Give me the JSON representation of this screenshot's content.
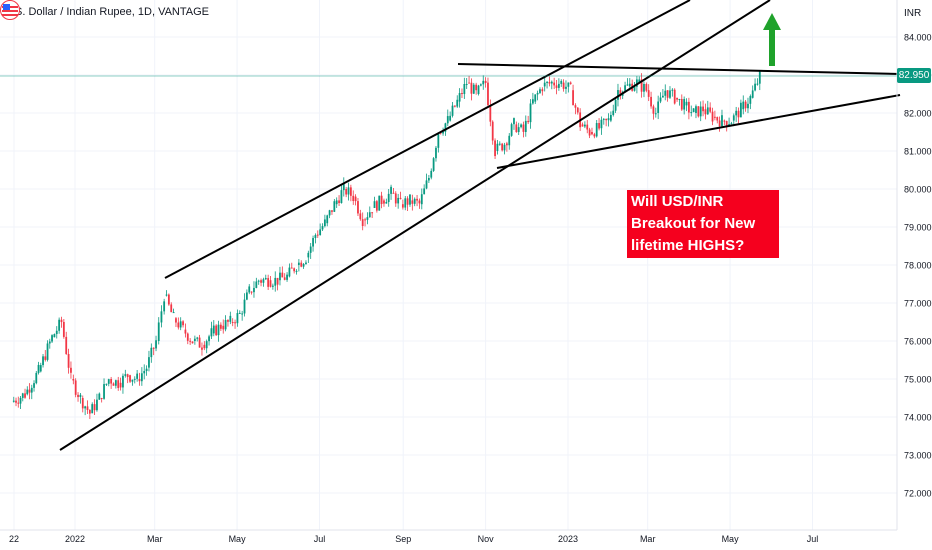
{
  "header": {
    "symbol_title": "U.S. Dollar / Indian Rupee, 1D, VANTAGE",
    "currency": "INR"
  },
  "annotation": {
    "lines": [
      "Will USD/INR",
      "Breakout for New",
      "lifetime HIGHS?"
    ]
  },
  "price_tag": "82.950",
  "colors": {
    "up": "#089981",
    "down": "#f23645",
    "arrow": "#1fa22b",
    "annotation_bg": "#f5001e",
    "price_line": "#089981",
    "trendline": "#000000"
  },
  "icons": {
    "arrow": "up-arrow-icon",
    "flag": "us-flag-icon"
  },
  "chart_data": {
    "type": "candlestick",
    "title": "U.S. Dollar / Indian Rupee, 1D, VANTAGE",
    "ylabel": "INR",
    "ylim": [
      71.5,
      84.5
    ],
    "y_ticks": [
      "72.000",
      "73.000",
      "74.000",
      "75.000",
      "76.000",
      "77.000",
      "78.000",
      "79.000",
      "80.000",
      "81.000",
      "82.000",
      "83.000",
      "84.000"
    ],
    "x_ticks": [
      "22",
      "2022",
      "Mar",
      "May",
      "Jul",
      "Sep",
      "Nov",
      "2023",
      "Mar",
      "May",
      "Jul"
    ],
    "last_price": 82.95,
    "grid": true,
    "legend": "none",
    "series": [
      {
        "points": [
          [
            "2021-11-15",
            74.4
          ],
          [
            "2021-11-25",
            74.6
          ],
          [
            "2021-12-05",
            75.2
          ],
          [
            "2021-12-15",
            76.1
          ],
          [
            "2021-12-22",
            76.5
          ],
          [
            "2021-12-29",
            75.0
          ],
          [
            "2022-01-05",
            74.5
          ],
          [
            "2022-01-12",
            74.1
          ],
          [
            "2022-01-19",
            74.5
          ],
          [
            "2022-01-26",
            75.0
          ],
          [
            "2022-02-02",
            74.9
          ],
          [
            "2022-02-09",
            75.1
          ],
          [
            "2022-02-16",
            75.0
          ],
          [
            "2022-02-23",
            75.3
          ],
          [
            "2022-03-02",
            76.0
          ],
          [
            "2022-03-08",
            77.2
          ],
          [
            "2022-03-15",
            76.6
          ],
          [
            "2022-03-22",
            76.3
          ],
          [
            "2022-03-29",
            76.0
          ],
          [
            "2022-04-05",
            75.9
          ],
          [
            "2022-04-12",
            76.2
          ],
          [
            "2022-04-19",
            76.4
          ],
          [
            "2022-04-26",
            76.5
          ],
          [
            "2022-05-03",
            76.7
          ],
          [
            "2022-05-10",
            77.3
          ],
          [
            "2022-05-17",
            77.6
          ],
          [
            "2022-05-24",
            77.6
          ],
          [
            "2022-05-31",
            77.6
          ],
          [
            "2022-06-07",
            77.7
          ],
          [
            "2022-06-14",
            78.0
          ],
          [
            "2022-06-21",
            78.2
          ],
          [
            "2022-06-28",
            78.8
          ],
          [
            "2022-07-05",
            79.1
          ],
          [
            "2022-07-12",
            79.6
          ],
          [
            "2022-07-19",
            80.0
          ],
          [
            "2022-07-26",
            79.8
          ],
          [
            "2022-08-02",
            79.2
          ],
          [
            "2022-08-09",
            79.5
          ],
          [
            "2022-08-16",
            79.7
          ],
          [
            "2022-08-23",
            79.9
          ],
          [
            "2022-08-30",
            79.6
          ],
          [
            "2022-09-06",
            79.7
          ],
          [
            "2022-09-13",
            79.6
          ],
          [
            "2022-09-20",
            80.3
          ],
          [
            "2022-09-27",
            81.5
          ],
          [
            "2022-10-04",
            81.8
          ],
          [
            "2022-10-11",
            82.3
          ],
          [
            "2022-10-18",
            82.8
          ],
          [
            "2022-10-25",
            82.5
          ],
          [
            "2022-11-01",
            82.8
          ],
          [
            "2022-11-08",
            81.0
          ],
          [
            "2022-11-15",
            81.2
          ],
          [
            "2022-11-22",
            81.7
          ],
          [
            "2022-11-29",
            81.5
          ],
          [
            "2022-12-06",
            82.3
          ],
          [
            "2022-12-13",
            82.7
          ],
          [
            "2022-12-20",
            82.8
          ],
          [
            "2022-12-27",
            82.8
          ],
          [
            "2023-01-03",
            82.6
          ],
          [
            "2023-01-10",
            81.7
          ],
          [
            "2023-01-17",
            81.5
          ],
          [
            "2023-01-24",
            81.6
          ],
          [
            "2023-01-31",
            81.8
          ],
          [
            "2023-02-07",
            82.6
          ],
          [
            "2023-02-14",
            82.7
          ],
          [
            "2023-02-21",
            82.8
          ],
          [
            "2023-02-28",
            82.6
          ],
          [
            "2023-03-07",
            82.0
          ],
          [
            "2023-03-14",
            82.6
          ],
          [
            "2023-03-21",
            82.4
          ],
          [
            "2023-03-28",
            82.2
          ],
          [
            "2023-04-04",
            82.0
          ],
          [
            "2023-04-11",
            82.1
          ],
          [
            "2023-04-18",
            81.9
          ],
          [
            "2023-04-25",
            81.8
          ],
          [
            "2023-05-02",
            81.8
          ],
          [
            "2023-05-09",
            82.1
          ],
          [
            "2023-05-16",
            82.4
          ],
          [
            "2023-05-23",
            82.95
          ]
        ]
      }
    ]
  }
}
